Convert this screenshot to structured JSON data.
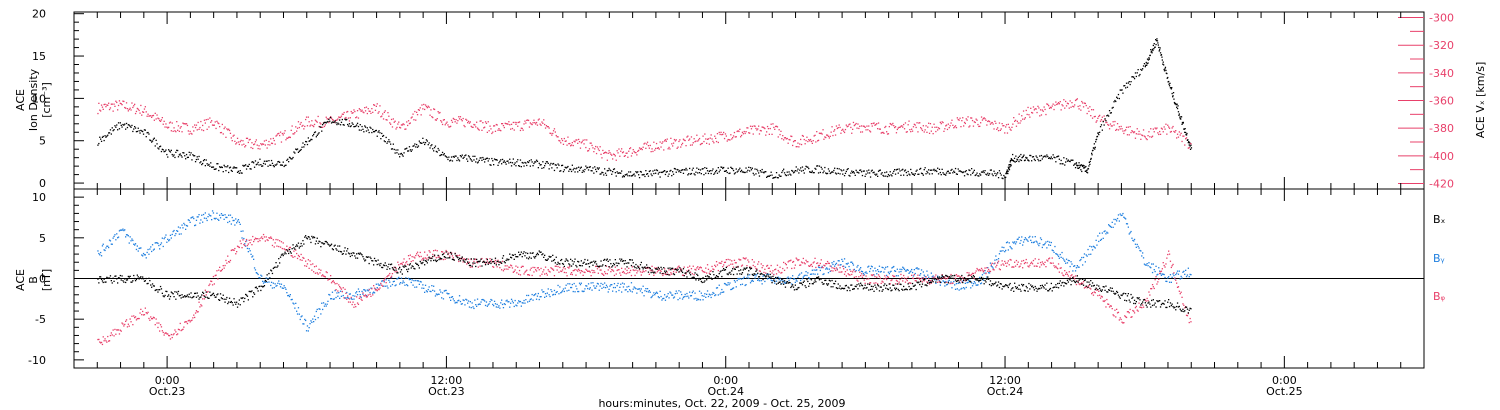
{
  "colors": {
    "bx": "#000000",
    "by": "#1f7fdf",
    "bz": "#e8406a",
    "density": "#000000",
    "vx": "#e8406a"
  },
  "chart_data": [
    {
      "type": "scatter",
      "panel": "top",
      "xaxis": {
        "range_hours": [
          -4,
          54
        ],
        "tick_labels": [
          {
            "hour": 0,
            "time": "0:00",
            "date": "Oct.23"
          },
          {
            "hour": 12,
            "time": "12:00",
            "date": "Oct.23"
          },
          {
            "hour": 24,
            "time": "0:00",
            "date": "Oct.24"
          },
          {
            "hour": 36,
            "time": "12:00",
            "date": "Oct.24"
          },
          {
            "hour": 48,
            "time": "0:00",
            "date": "Oct.25"
          }
        ],
        "xlabel": "hours:minutes, Oct. 22, 2009 - Oct. 25, 2009"
      },
      "left_axis": {
        "label_lines": [
          "ACE",
          "Ion Density",
          "[cm⁻³]"
        ],
        "ylim": [
          -0.7,
          20.2
        ],
        "ticks": [
          0,
          5,
          10,
          15,
          20
        ]
      },
      "right_axis": {
        "label": "ACE Vₓ [km/s]",
        "ylim": [
          -424,
          -296
        ],
        "ticks": [
          -300,
          -320,
          -340,
          -360,
          -380,
          -400,
          -420
        ]
      },
      "series": [
        {
          "key": "density",
          "axis": "left",
          "x": [
            -3,
            -2,
            -1,
            0,
            1,
            2,
            3,
            4,
            5,
            6,
            7,
            8,
            9,
            10,
            11,
            12,
            13,
            14,
            15,
            16,
            17,
            18,
            19,
            20,
            21,
            22,
            23,
            24,
            25,
            26,
            27,
            28,
            29,
            30,
            31,
            32,
            33,
            34,
            35,
            36,
            36.3,
            37,
            38,
            39,
            39.5,
            40,
            41,
            42,
            42.5,
            43,
            43.5,
            44
          ],
          "y": [
            5,
            7,
            6,
            3.6,
            3.3,
            2,
            1.5,
            2.5,
            2.4,
            5,
            7.5,
            7,
            6,
            3.5,
            5,
            3,
            3,
            2.5,
            2.5,
            2.3,
            1.8,
            1.7,
            1.4,
            1.1,
            1.2,
            1.4,
            1.5,
            1.6,
            1.5,
            1,
            1.6,
            1.7,
            1.4,
            1.2,
            1.2,
            1.4,
            1.5,
            1.4,
            1.3,
            1,
            3,
            3,
            3,
            2.3,
            1.5,
            6,
            11,
            14,
            17,
            12,
            8,
            4
          ]
        },
        {
          "key": "vx",
          "axis": "right",
          "x": [
            -3,
            -2,
            -1,
            0,
            1,
            2,
            3,
            4,
            5,
            6,
            7,
            8,
            9,
            10,
            11,
            12,
            13,
            14,
            15,
            16,
            17,
            18,
            19,
            20,
            21,
            22,
            23,
            24,
            25,
            26,
            27,
            28,
            29,
            30,
            31,
            32,
            33,
            34,
            35,
            36,
            37,
            38,
            39,
            40,
            41,
            42,
            43,
            44
          ],
          "y": [
            -365,
            -363,
            -367,
            -378,
            -380,
            -375,
            -390,
            -392,
            -385,
            -375,
            -375,
            -370,
            -365,
            -380,
            -365,
            -375,
            -375,
            -380,
            -378,
            -375,
            -388,
            -392,
            -400,
            -396,
            -392,
            -390,
            -388,
            -385,
            -382,
            -380,
            -390,
            -385,
            -380,
            -378,
            -380,
            -378,
            -380,
            -375,
            -375,
            -380,
            -368,
            -365,
            -360,
            -373,
            -380,
            -385,
            -380,
            -392
          ]
        }
      ]
    },
    {
      "type": "scatter",
      "panel": "bottom",
      "left_axis": {
        "label_lines": [
          "ACE",
          "B",
          "[nT]"
        ],
        "ylim": [
          -11,
          11
        ],
        "ticks": [
          -10,
          -5,
          0,
          5,
          10
        ]
      },
      "zero_line": true,
      "series": [
        {
          "name": "Bₓ",
          "key": "bx",
          "x": [
            -3,
            -2,
            -1,
            0,
            1,
            2,
            3,
            4,
            5,
            6,
            7,
            8,
            9,
            10,
            11,
            12,
            13,
            14,
            15,
            16,
            17,
            18,
            19,
            20,
            21,
            22,
            23,
            24,
            25,
            26,
            27,
            28,
            29,
            30,
            31,
            32,
            33,
            34,
            35,
            36,
            37,
            38,
            39,
            40,
            41,
            42,
            43,
            44
          ],
          "y": [
            0,
            0,
            0,
            -2,
            -2,
            -2,
            -3,
            -1,
            3,
            5,
            4,
            3,
            2,
            1,
            2,
            3,
            2,
            2,
            3,
            3,
            2,
            2,
            2,
            2,
            1,
            1,
            0,
            1,
            1,
            0,
            -1,
            0,
            -1,
            -1,
            -1,
            -1,
            0,
            0,
            0,
            -1,
            -1,
            -1,
            0,
            -1,
            -2,
            -3,
            -3,
            -4
          ]
        },
        {
          "name": "Bᵧ",
          "key": "by",
          "x": [
            -3,
            -2,
            -1,
            0,
            1,
            2,
            3,
            4,
            5,
            6,
            7,
            8,
            9,
            10,
            11,
            12,
            13,
            14,
            15,
            16,
            17,
            18,
            19,
            20,
            21,
            22,
            23,
            24,
            25,
            26,
            27,
            28,
            29,
            30,
            31,
            32,
            33,
            34,
            35,
            36,
            37,
            38,
            39,
            40,
            41,
            42,
            43,
            44
          ],
          "y": [
            3,
            6,
            3,
            5,
            7,
            8,
            7,
            0,
            -1,
            -6,
            -2,
            -2,
            -1,
            0,
            -1,
            -2,
            -3,
            -3,
            -3,
            -2,
            -1,
            -1,
            -1,
            -1,
            -2,
            -2,
            -2,
            -1,
            0,
            0,
            0,
            1,
            2,
            1,
            1,
            1,
            0,
            -1,
            0,
            4,
            5,
            4,
            1,
            5,
            8,
            2,
            0,
            1
          ]
        },
        {
          "name": "Bᵩ",
          "key": "bz",
          "x": [
            -3,
            -2,
            -1,
            0,
            1,
            2,
            3,
            4,
            5,
            6,
            7,
            8,
            9,
            10,
            11,
            12,
            13,
            14,
            15,
            16,
            17,
            18,
            19,
            20,
            21,
            22,
            23,
            24,
            25,
            26,
            27,
            28,
            29,
            30,
            31,
            32,
            33,
            34,
            35,
            36,
            37,
            38,
            39,
            40,
            41,
            42,
            43,
            44
          ],
          "y": [
            -8,
            -6,
            -4,
            -7,
            -5,
            0,
            4,
            5,
            4,
            2,
            0,
            -3,
            -1,
            2,
            3,
            3,
            2,
            2,
            1,
            1,
            1,
            1,
            1,
            1,
            1,
            1,
            1,
            2,
            2,
            1,
            2,
            2,
            1,
            0,
            0,
            0,
            0,
            0,
            1,
            2,
            2,
            2,
            0,
            -2,
            -5,
            -3,
            3,
            -6
          ]
        }
      ]
    }
  ]
}
